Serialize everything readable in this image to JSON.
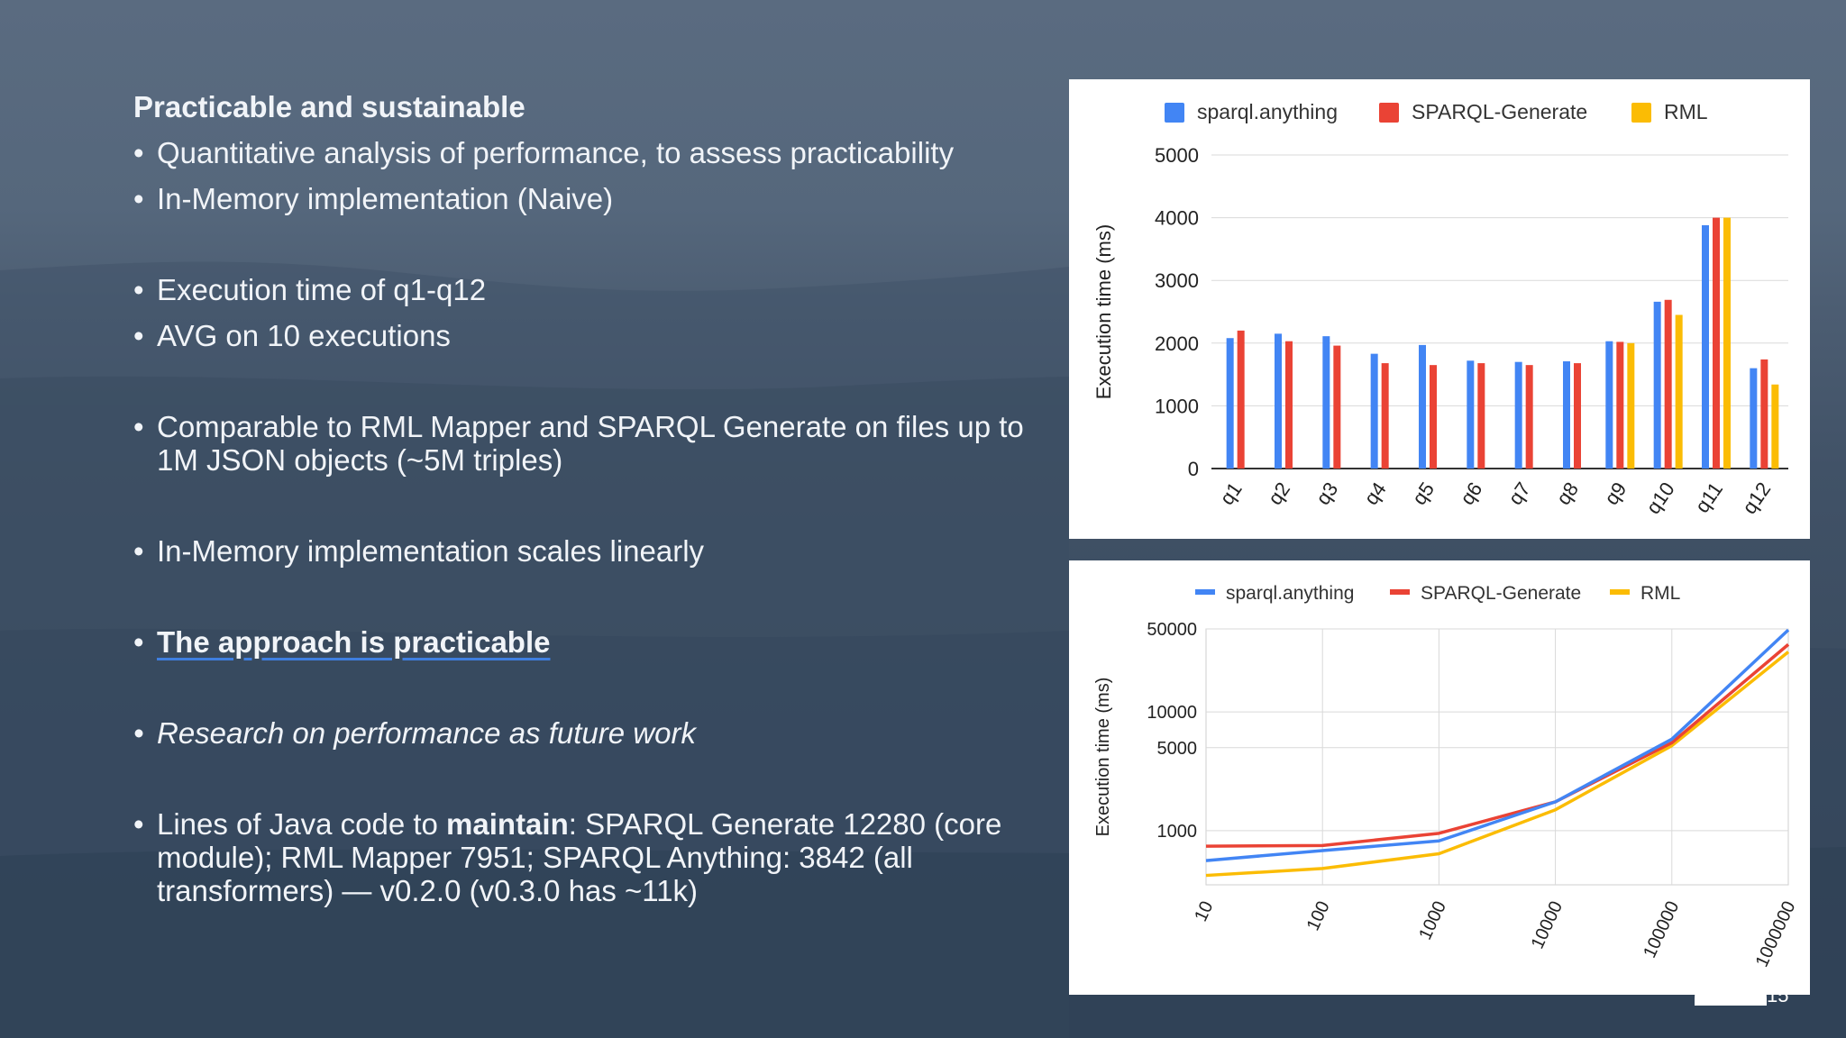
{
  "slide": {
    "heading": "Practicable and sustainable",
    "b1": "Quantitative analysis of performance, to assess practicability",
    "b2": "In-Memory implementation (Naive)",
    "b3": "Execution time of q1-q12",
    "b4": "AVG on 10 executions",
    "b5": "Comparable to RML Mapper and SPARQL Generate on files up to 1M JSON objects (~5M triples)",
    "b6": "In-Memory implementation scales linearly",
    "b7": "The approach is practicable",
    "b8": "Research on performance as future work",
    "b9_pre": "Lines of Java code to ",
    "b9_strong": "maintain",
    "b9_post": ": SPARQL Generate 12280 (core module); RML Mapper 7951; SPARQL Anything: 3842 (all transformers) — v0.2.0 (v0.3.0 has ~11k)",
    "page_number": "15"
  },
  "colors": {
    "sparql_anything": "#4285f4",
    "sparql_generate": "#ea4335",
    "rml": "#fbbc04",
    "accent_underline": "#3f7fe0"
  },
  "chart_data": [
    {
      "type": "bar",
      "categories": [
        "q1",
        "q2",
        "q3",
        "q4",
        "q5",
        "q6",
        "q7",
        "q8",
        "q9",
        "q10",
        "q11",
        "q12"
      ],
      "series": [
        {
          "name": "sparql.anything",
          "values": [
            2080,
            2150,
            2110,
            1830,
            1970,
            1720,
            1700,
            1710,
            2030,
            2660,
            3880,
            1600
          ]
        },
        {
          "name": "SPARQL-Generate",
          "values": [
            2200,
            2030,
            1960,
            1680,
            1650,
            1680,
            1650,
            1680,
            2020,
            2690,
            4000,
            1740
          ]
        },
        {
          "name": "RML",
          "values": [
            null,
            null,
            null,
            null,
            null,
            null,
            null,
            null,
            2000,
            2450,
            4000,
            1340
          ]
        }
      ],
      "ylabel": "Execution time (ms)",
      "xlabel": "",
      "ylim": [
        0,
        5000
      ],
      "yticks": [
        "0",
        "1000",
        "2000",
        "3000",
        "4000",
        "5000"
      ],
      "grid": true,
      "legend": "top"
    },
    {
      "type": "line",
      "x": [
        "10",
        "100",
        "1000",
        "10000",
        "100000",
        "1000000"
      ],
      "series": [
        {
          "name": "sparql.anything",
          "values": [
            560,
            680,
            820,
            1750,
            5900,
            49000
          ]
        },
        {
          "name": "SPARQL-Generate",
          "values": [
            740,
            750,
            950,
            1750,
            5500,
            37000
          ]
        },
        {
          "name": "RML",
          "values": [
            420,
            480,
            640,
            1500,
            5200,
            32000
          ]
        }
      ],
      "ylabel": "Execution time (ms)",
      "xlabel": "",
      "yscale": "log",
      "ylim": [
        350,
        50000
      ],
      "yticks": [
        "1000",
        "5000",
        "10000",
        "50000"
      ],
      "grid": true,
      "legend": "top"
    }
  ]
}
